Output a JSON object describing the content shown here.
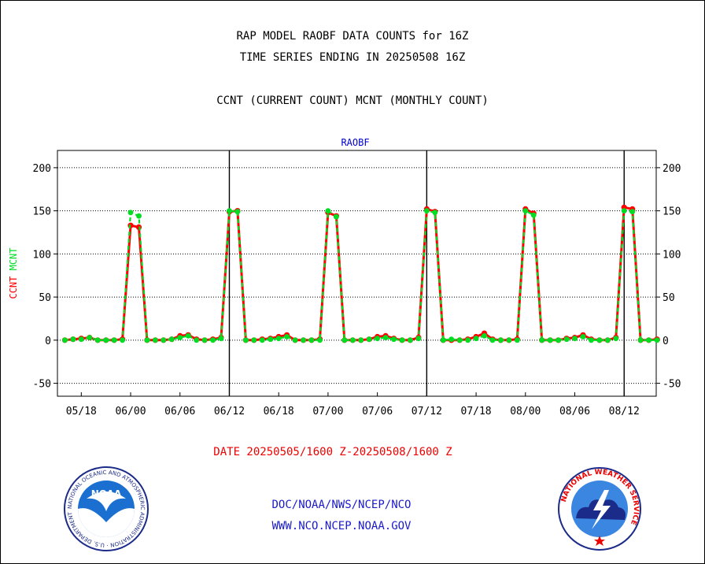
{
  "header": {
    "title_line1": "RAP MODEL RAOBF DATA COUNTS for 16Z",
    "title_line2": "TIME SERIES ENDING IN 20250508 16Z",
    "subtitle": "CCNT (CURRENT COUNT) MCNT (MONTHLY COUNT)"
  },
  "footer": {
    "date_range": "DATE 20250505/1600 Z-20250508/1600 Z",
    "link1": "DOC/NOAA/NWS/NCEP/NCO",
    "link2": "WWW.NCO.NCEP.NOAA.GOV"
  },
  "logos": {
    "noaa_text": "NOAA",
    "noaa_ring": "NATIONAL OCEANIC AND ATMOSPHERIC ADMINISTRATION · U.S. DEPARTMENT OF COMMERCE ·",
    "nws_ring": "NATIONAL WEATHER SERVICE"
  },
  "chart_data": {
    "type": "line",
    "title": "RAOBF",
    "ylabel_ccnt": "CCNT",
    "ylabel_mcnt": "MCNT",
    "ylim": [
      -65,
      220
    ],
    "yticks": [
      -50,
      0,
      50,
      100,
      150,
      200
    ],
    "xlim": [
      -2.9,
      69.9
    ],
    "xticks": [
      {
        "x": 0,
        "label": "05/18"
      },
      {
        "x": 6,
        "label": "06/00"
      },
      {
        "x": 12,
        "label": "06/06"
      },
      {
        "x": 18,
        "label": "06/12"
      },
      {
        "x": 24,
        "label": "06/18"
      },
      {
        "x": 30,
        "label": "07/00"
      },
      {
        "x": 36,
        "label": "07/06"
      },
      {
        "x": 42,
        "label": "07/12"
      },
      {
        "x": 48,
        "label": "07/18"
      },
      {
        "x": 54,
        "label": "08/00"
      },
      {
        "x": 60,
        "label": "08/06"
      },
      {
        "x": 66,
        "label": "08/12"
      }
    ],
    "vlines": [
      18,
      42,
      66
    ],
    "grid": true,
    "colors": {
      "ccnt": "#ff0000",
      "mcnt": "#00dd22",
      "title": "#0000cc"
    },
    "series": [
      {
        "name": "CCNT",
        "values": [
          [
            -2,
            0
          ],
          [
            -1,
            1
          ],
          [
            0,
            2
          ],
          [
            1,
            3
          ],
          [
            2,
            0
          ],
          [
            3,
            0
          ],
          [
            4,
            0
          ],
          [
            5,
            1
          ],
          [
            6,
            133
          ],
          [
            7,
            131
          ],
          [
            8,
            0
          ],
          [
            9,
            0
          ],
          [
            10,
            0
          ],
          [
            11,
            1
          ],
          [
            12,
            5
          ],
          [
            13,
            6
          ],
          [
            14,
            1
          ],
          [
            15,
            0
          ],
          [
            16,
            1
          ],
          [
            17,
            3
          ],
          [
            18,
            149
          ],
          [
            19,
            150
          ],
          [
            20,
            0
          ],
          [
            21,
            0
          ],
          [
            22,
            1
          ],
          [
            23,
            2
          ],
          [
            24,
            4
          ],
          [
            25,
            6
          ],
          [
            26,
            0
          ],
          [
            27,
            0
          ],
          [
            28,
            0
          ],
          [
            29,
            1
          ],
          [
            30,
            148
          ],
          [
            31,
            144
          ],
          [
            32,
            0
          ],
          [
            33,
            0
          ],
          [
            34,
            0
          ],
          [
            35,
            1
          ],
          [
            36,
            4
          ],
          [
            37,
            5
          ],
          [
            38,
            2
          ],
          [
            39,
            0
          ],
          [
            40,
            0
          ],
          [
            41,
            3
          ],
          [
            42,
            152
          ],
          [
            43,
            149
          ],
          [
            44,
            0
          ],
          [
            45,
            0
          ],
          [
            46,
            0
          ],
          [
            47,
            1
          ],
          [
            48,
            4
          ],
          [
            49,
            8
          ],
          [
            50,
            1
          ],
          [
            51,
            0
          ],
          [
            52,
            0
          ],
          [
            53,
            1
          ],
          [
            54,
            152
          ],
          [
            55,
            147
          ],
          [
            56,
            0
          ],
          [
            57,
            0
          ],
          [
            58,
            0
          ],
          [
            59,
            2
          ],
          [
            60,
            3
          ],
          [
            61,
            6
          ],
          [
            62,
            1
          ],
          [
            63,
            0
          ],
          [
            64,
            0
          ],
          [
            65,
            3
          ],
          [
            66,
            154
          ],
          [
            67,
            152
          ],
          [
            68,
            0
          ],
          [
            69,
            0
          ],
          [
            70,
            1
          ]
        ]
      },
      {
        "name": "MCNT",
        "values": [
          [
            -2,
            0
          ],
          [
            -1,
            1
          ],
          [
            0,
            1
          ],
          [
            1,
            3
          ],
          [
            2,
            0
          ],
          [
            3,
            0
          ],
          [
            4,
            0
          ],
          [
            5,
            0
          ],
          [
            6,
            148
          ],
          [
            7,
            144
          ],
          [
            8,
            0
          ],
          [
            9,
            0
          ],
          [
            10,
            0
          ],
          [
            11,
            1
          ],
          [
            12,
            3
          ],
          [
            13,
            5
          ],
          [
            14,
            0
          ],
          [
            15,
            0
          ],
          [
            16,
            0
          ],
          [
            17,
            2
          ],
          [
            18,
            150
          ],
          [
            19,
            149
          ],
          [
            20,
            0
          ],
          [
            21,
            0
          ],
          [
            22,
            0
          ],
          [
            23,
            1
          ],
          [
            24,
            2
          ],
          [
            25,
            4
          ],
          [
            26,
            0
          ],
          [
            27,
            0
          ],
          [
            28,
            0
          ],
          [
            29,
            0
          ],
          [
            30,
            150
          ],
          [
            31,
            143
          ],
          [
            32,
            0
          ],
          [
            33,
            0
          ],
          [
            34,
            0
          ],
          [
            35,
            1
          ],
          [
            36,
            2
          ],
          [
            37,
            3
          ],
          [
            38,
            1
          ],
          [
            39,
            0
          ],
          [
            40,
            0
          ],
          [
            41,
            2
          ],
          [
            42,
            150
          ],
          [
            43,
            148
          ],
          [
            44,
            0
          ],
          [
            45,
            1
          ],
          [
            46,
            0
          ],
          [
            47,
            0
          ],
          [
            48,
            2
          ],
          [
            49,
            5
          ],
          [
            50,
            0
          ],
          [
            51,
            0
          ],
          [
            52,
            0
          ],
          [
            53,
            0
          ],
          [
            54,
            150
          ],
          [
            55,
            145
          ],
          [
            56,
            0
          ],
          [
            57,
            0
          ],
          [
            58,
            0
          ],
          [
            59,
            1
          ],
          [
            60,
            2
          ],
          [
            61,
            4
          ],
          [
            62,
            0
          ],
          [
            63,
            0
          ],
          [
            64,
            0
          ],
          [
            65,
            2
          ],
          [
            66,
            150
          ],
          [
            67,
            149
          ],
          [
            68,
            0
          ],
          [
            69,
            0
          ],
          [
            70,
            0
          ]
        ]
      }
    ]
  }
}
